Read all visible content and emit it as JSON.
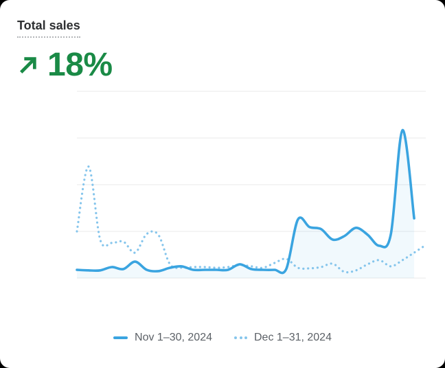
{
  "card": {
    "title": "Total sales",
    "delta": {
      "value": "18%",
      "direction": "up"
    },
    "icons": {
      "trend": "arrow-up-right"
    },
    "colors": {
      "accent_green": "#1a8a46",
      "nov_blue": "#3aa4e0",
      "dec_blue": "#85c5ec",
      "nov_area_fill": "rgba(58,164,224,0.07)",
      "grid": "#ededee",
      "title_text": "#2d2f31",
      "legend_text": "#5c6167"
    }
  },
  "legend": [
    {
      "label": "Nov 1–30, 2024",
      "style": "solid"
    },
    {
      "label": "Dec 1–31, 2024",
      "style": "dotted"
    }
  ],
  "chart_data": {
    "type": "line",
    "title": "Total sales",
    "xlabel": "",
    "ylabel": "",
    "x_unit": "day of month",
    "ylim": [
      0,
      100
    ],
    "gridlines": 5,
    "grid": true,
    "axis_labels_visible": false,
    "legend_position": "bottom",
    "series": [
      {
        "name": "Nov 1–30, 2024",
        "style": "solid",
        "color": "#3aa4e0",
        "area_fill": true,
        "values": [
          4.4,
          4.1,
          4.1,
          5.9,
          4.8,
          8.8,
          4.4,
          3.7,
          5.5,
          6.3,
          4.4,
          4.4,
          4.4,
          4.4,
          7.4,
          4.8,
          4.4,
          4.4,
          4.8,
          31.3,
          27.3,
          26.2,
          20.6,
          22.5,
          26.9,
          23.2,
          17.3,
          23.6,
          79.2,
          32.0
        ]
      },
      {
        "name": "Dec 1–31, 2024",
        "style": "dotted",
        "color": "#85c5ec",
        "area_fill": false,
        "values": [
          25.0,
          59.7,
          20.6,
          18.8,
          19.5,
          13.6,
          23.6,
          23.2,
          7.4,
          5.5,
          5.9,
          5.9,
          5.5,
          5.9,
          7.0,
          6.3,
          5.5,
          8.1,
          10.3,
          5.5,
          5.2,
          5.9,
          7.7,
          3.3,
          4.1,
          7.4,
          9.6,
          6.3,
          9.6,
          13.6,
          17.7
        ]
      }
    ]
  }
}
